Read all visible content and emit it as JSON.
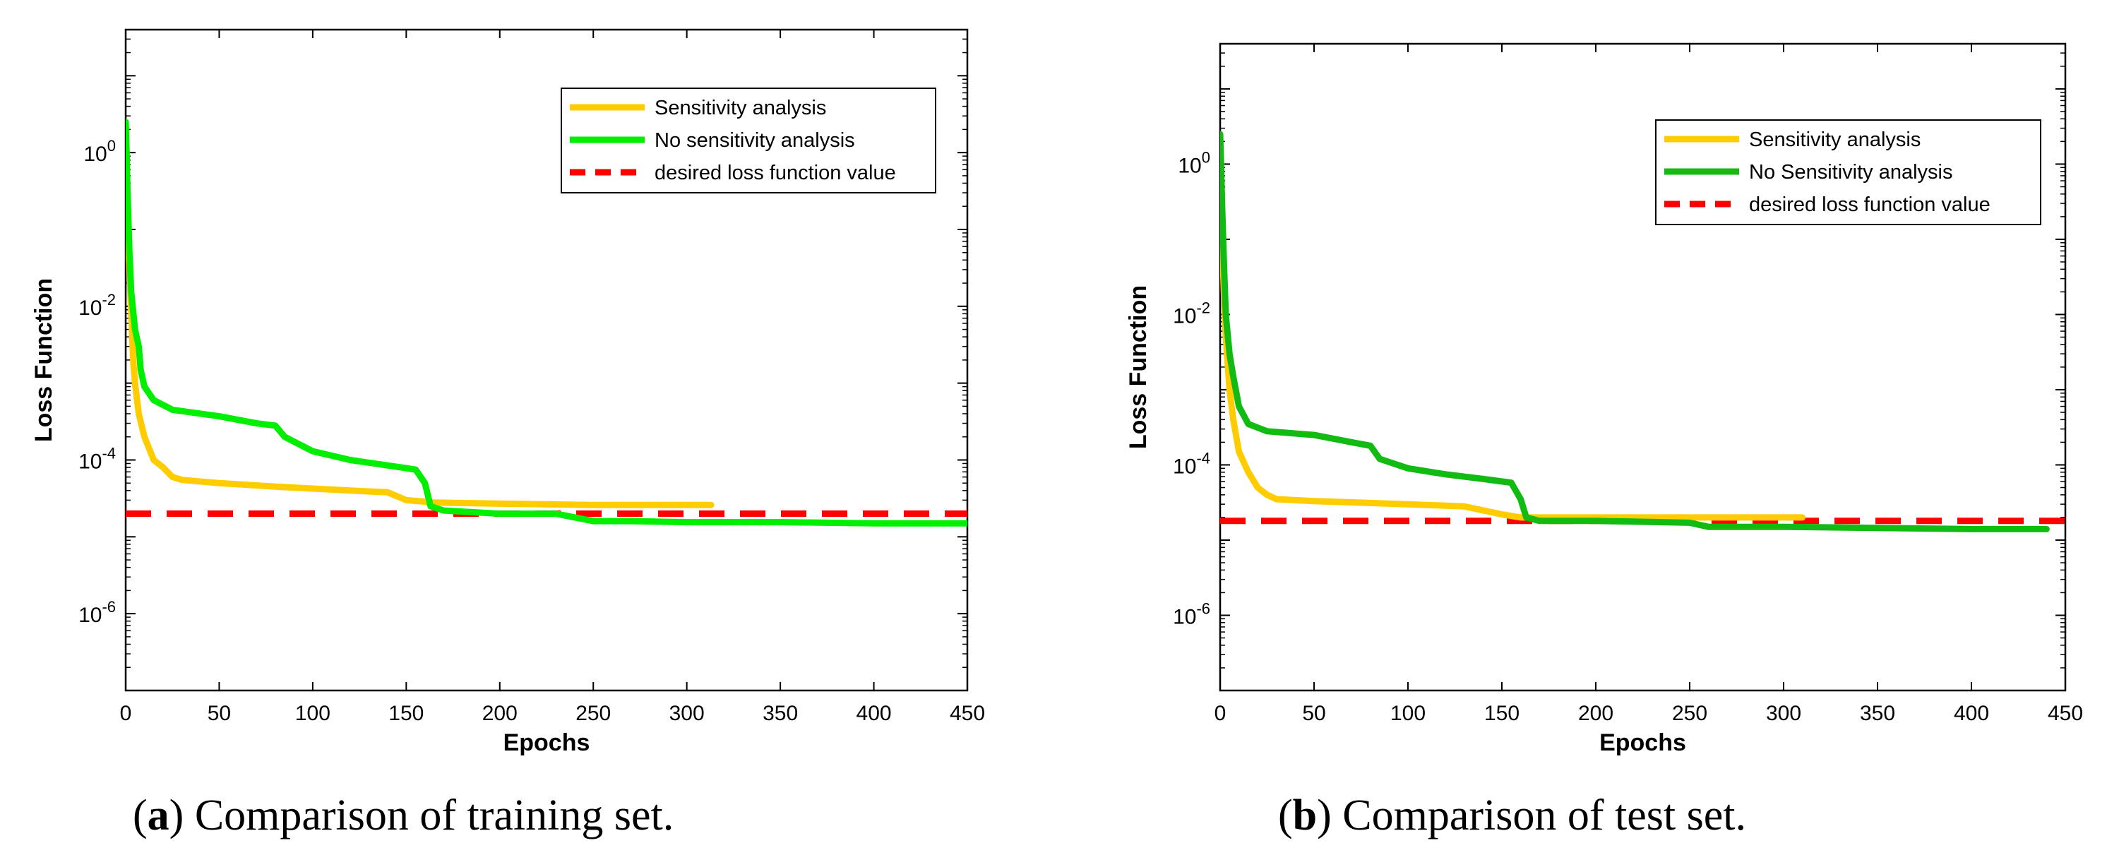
{
  "chart_data": [
    {
      "type": "line",
      "panel": "a",
      "title": "",
      "xlabel": "Epochs",
      "ylabel": "Loss Function",
      "yscale": "log",
      "xlim": [
        0,
        450
      ],
      "ylim_exp": [
        -7.0,
        1.6
      ],
      "xticks": [
        0,
        50,
        100,
        150,
        200,
        250,
        300,
        350,
        400,
        450
      ],
      "xtick_labels": [
        "0",
        "50",
        "100",
        "150",
        "200",
        "250",
        "300",
        "350",
        "400",
        "450"
      ],
      "yticks_exp": [
        0,
        -2,
        -4,
        -6
      ],
      "ytick_labels": [
        {
          "base": "10",
          "exp": "0"
        },
        {
          "base": "10",
          "exp": "-2"
        },
        {
          "base": "10",
          "exp": "-4"
        },
        {
          "base": "10",
          "exp": "-6"
        }
      ],
      "legend_position": "top-right",
      "threshold": {
        "name": "desired loss function value",
        "value": 2e-05,
        "color": "#ff0000"
      },
      "series": [
        {
          "name": "Sensitivity analysis",
          "color": "#ffcc00",
          "points": [
            [
              0,
              1.0
            ],
            [
              0.5,
              0.3
            ],
            [
              1,
              0.1
            ],
            [
              2,
              0.03
            ],
            [
              3,
              0.008
            ],
            [
              4,
              0.002
            ],
            [
              5,
              0.001
            ],
            [
              7,
              0.0004
            ],
            [
              10,
              0.0002
            ],
            [
              15,
              0.0001
            ],
            [
              20,
              8e-05
            ],
            [
              25,
              6e-05
            ],
            [
              30,
              5.5e-05
            ],
            [
              50,
              5e-05
            ],
            [
              80,
              4.5e-05
            ],
            [
              120,
              4e-05
            ],
            [
              140,
              3.8e-05
            ],
            [
              150,
              3e-05
            ],
            [
              165,
              2.8e-05
            ],
            [
              200,
              2.7e-05
            ],
            [
              250,
              2.6e-05
            ],
            [
              300,
              2.6e-05
            ],
            [
              313,
              2.6e-05
            ]
          ]
        },
        {
          "name": "No sensitivity analysis",
          "color": "#00ee00",
          "points": [
            [
              0,
              2.5
            ],
            [
              0.5,
              1.0
            ],
            [
              1,
              0.3
            ],
            [
              2,
              0.05
            ],
            [
              3,
              0.015
            ],
            [
              5,
              0.005
            ],
            [
              7,
              0.003
            ],
            [
              8,
              0.0015
            ],
            [
              10,
              0.0009
            ],
            [
              15,
              0.0006
            ],
            [
              25,
              0.00045
            ],
            [
              50,
              0.00037
            ],
            [
              70,
              0.0003
            ],
            [
              80,
              0.00028
            ],
            [
              85,
              0.0002
            ],
            [
              100,
              0.00013
            ],
            [
              120,
              0.0001
            ],
            [
              140,
              8.5e-05
            ],
            [
              155,
              7.5e-05
            ],
            [
              160,
              5e-05
            ],
            [
              163,
              2.5e-05
            ],
            [
              170,
              2.2e-05
            ],
            [
              200,
              2e-05
            ],
            [
              230,
              2e-05
            ],
            [
              250,
              1.6e-05
            ],
            [
              270,
              1.6e-05
            ],
            [
              300,
              1.55e-05
            ],
            [
              350,
              1.55e-05
            ],
            [
              400,
              1.5e-05
            ],
            [
              450,
              1.5e-05
            ]
          ]
        }
      ],
      "caption": {
        "label": "a",
        "text": " Comparison of training set."
      }
    },
    {
      "type": "line",
      "panel": "b",
      "title": "",
      "xlabel": "Epochs",
      "ylabel": "Loss Function",
      "yscale": "log",
      "xlim": [
        0,
        450
      ],
      "ylim_exp": [
        -7.0,
        1.6
      ],
      "xticks": [
        0,
        50,
        100,
        150,
        200,
        250,
        300,
        350,
        400,
        450
      ],
      "xtick_labels": [
        "0",
        "50",
        "100",
        "150",
        "200",
        "250",
        "300",
        "350",
        "400",
        "450"
      ],
      "yticks_exp": [
        0,
        -2,
        -4,
        -6
      ],
      "ytick_labels": [
        {
          "base": "10",
          "exp": "0"
        },
        {
          "base": "10",
          "exp": "-2"
        },
        {
          "base": "10",
          "exp": "-4"
        },
        {
          "base": "10",
          "exp": "-6"
        }
      ],
      "legend_position": "top-right",
      "threshold": {
        "name": "desired loss function value",
        "value": 1.8e-05,
        "color": "#ff0000"
      },
      "series": [
        {
          "name": "Sensitivity analysis",
          "color": "#ffcc00",
          "points": [
            [
              0,
              1.0
            ],
            [
              0.5,
              0.3
            ],
            [
              1,
              0.1
            ],
            [
              2,
              0.02
            ],
            [
              3,
              0.005
            ],
            [
              5,
              0.001
            ],
            [
              7,
              0.0004
            ],
            [
              10,
              0.00015
            ],
            [
              15,
              8e-05
            ],
            [
              20,
              5e-05
            ],
            [
              25,
              4e-05
            ],
            [
              30,
              3.5e-05
            ],
            [
              50,
              3.3e-05
            ],
            [
              100,
              3e-05
            ],
            [
              130,
              2.8e-05
            ],
            [
              150,
              2.2e-05
            ],
            [
              160,
              2e-05
            ],
            [
              200,
              2e-05
            ],
            [
              250,
              2e-05
            ],
            [
              300,
              2e-05
            ],
            [
              310,
              2e-05
            ]
          ]
        },
        {
          "name": "No Sensitivity analysis",
          "color": "#11bb11",
          "points": [
            [
              0,
              2.5
            ],
            [
              0.5,
              1.0
            ],
            [
              1,
              0.3
            ],
            [
              2,
              0.05
            ],
            [
              3,
              0.01
            ],
            [
              5,
              0.003
            ],
            [
              7,
              0.0015
            ],
            [
              10,
              0.0006
            ],
            [
              15,
              0.00035
            ],
            [
              25,
              0.00028
            ],
            [
              50,
              0.00025
            ],
            [
              70,
              0.0002
            ],
            [
              80,
              0.00018
            ],
            [
              85,
              0.00012
            ],
            [
              100,
              9e-05
            ],
            [
              120,
              7.5e-05
            ],
            [
              140,
              6.5e-05
            ],
            [
              155,
              5.8e-05
            ],
            [
              160,
              3.5e-05
            ],
            [
              163,
              2e-05
            ],
            [
              170,
              1.8e-05
            ],
            [
              200,
              1.8e-05
            ],
            [
              250,
              1.7e-05
            ],
            [
              260,
              1.5e-05
            ],
            [
              300,
              1.5e-05
            ],
            [
              350,
              1.45e-05
            ],
            [
              400,
              1.4e-05
            ],
            [
              440,
              1.4e-05
            ]
          ]
        }
      ],
      "caption": {
        "label": "b",
        "text": " Comparison of test set."
      }
    }
  ]
}
